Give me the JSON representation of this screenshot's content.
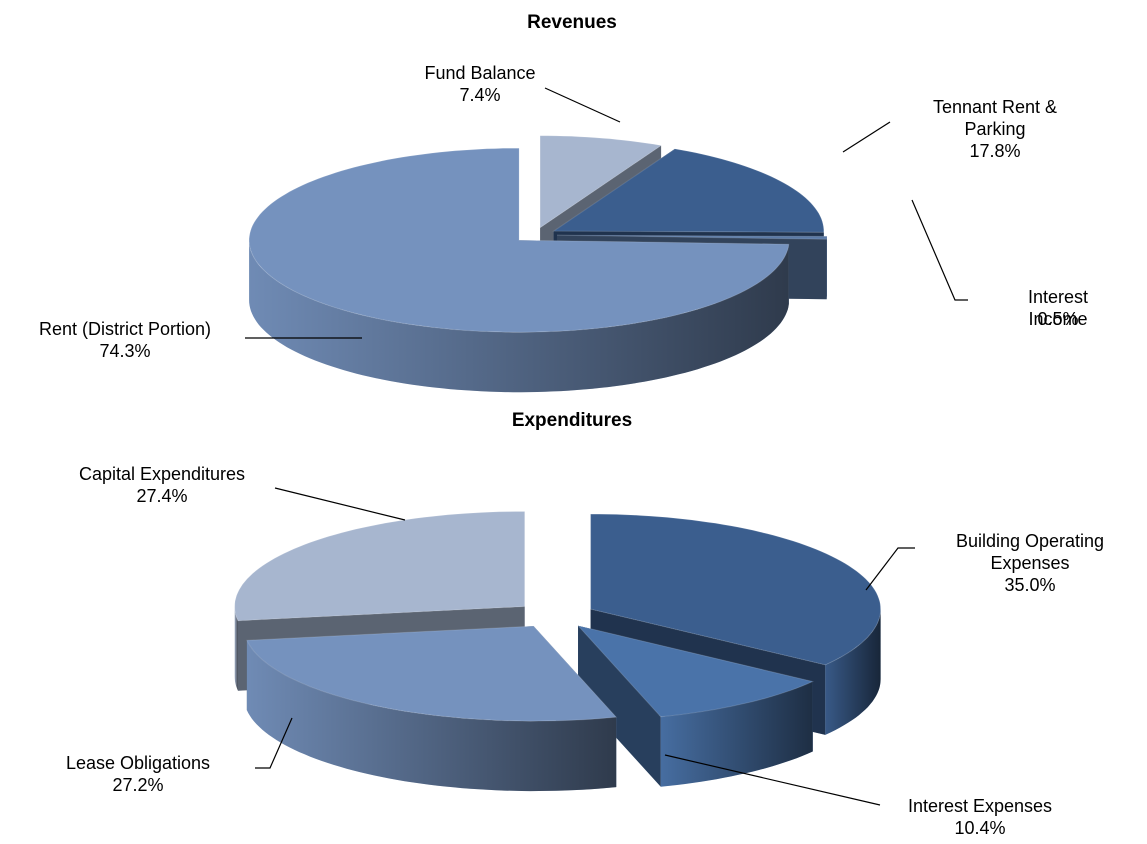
{
  "chart_data": [
    {
      "type": "pie",
      "title": "Revenues",
      "categories": [
        "Fund Balance",
        "Tennant Rent & Parking",
        "Interest Income",
        "Rent (District Portion)"
      ],
      "values": [
        7.4,
        17.8,
        0.5,
        74.3
      ],
      "value_labels": [
        "7.4%",
        "17.8%",
        "0.5%",
        "74.3%"
      ],
      "colors": [
        "#a7b6cf",
        "#3b5e8e",
        "#5b7aa6",
        "#7592be"
      ]
    },
    {
      "type": "pie",
      "title": "Expenditures",
      "categories": [
        "Building Operating Expenses",
        "Interest Expenses",
        "Lease Obligations",
        "Capital Expenditures"
      ],
      "values": [
        35.0,
        10.4,
        27.2,
        27.4
      ],
      "value_labels": [
        "35.0%",
        "10.4%",
        "27.2%",
        "27.4%"
      ],
      "colors": [
        "#3b5e8e",
        "#4a73a9",
        "#7592be",
        "#a7b6cf"
      ]
    }
  ]
}
